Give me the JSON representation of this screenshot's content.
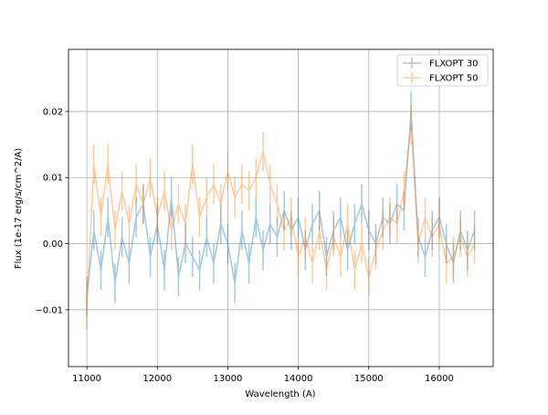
{
  "chart_data": {
    "type": "line",
    "title": "",
    "xlabel": "Wavelength (A)",
    "ylabel": "Flux (1e-17 erg/s/cm^2/A)",
    "xlim": [
      10740,
      16765
    ],
    "ylim": [
      -0.0186,
      0.0294
    ],
    "grid": true,
    "legend_position": "top-right",
    "x_ticks": [
      11000,
      12000,
      13000,
      14000,
      15000,
      16000
    ],
    "x_tick_labels": [
      "11000",
      "12000",
      "13000",
      "14000",
      "15000",
      "16000"
    ],
    "y_ticks": [
      -0.01,
      0.0,
      0.01,
      0.02
    ],
    "y_tick_labels": [
      "−0.01",
      "0.00",
      "0.01",
      "0.02"
    ],
    "x_start": 11000,
    "x_step": 100,
    "error": 0.003,
    "series": [
      {
        "name": "FLXOPT 30",
        "color": "#1f77b4",
        "values": [
          -0.008,
          0.002,
          -0.004,
          0.004,
          -0.006,
          0.001,
          -0.003,
          0.004,
          0.006,
          -0.002,
          0.003,
          -0.004,
          0.007,
          -0.005,
          0.0,
          -0.002,
          -0.004,
          0.001,
          -0.003,
          0.003,
          0.0,
          -0.006,
          0.002,
          -0.003,
          0.004,
          -0.001,
          0.003,
          0.001,
          0.005,
          0.002,
          0.004,
          -0.001,
          0.003,
          0.005,
          -0.002,
          0.002,
          0.004,
          -0.001,
          0.003,
          0.006,
          0.002,
          0.0,
          0.004,
          0.003,
          0.006,
          0.005,
          0.02,
          0.001,
          -0.002,
          0.002,
          0.004,
          0.0,
          -0.003,
          0.002,
          -0.001,
          0.002
        ]
      },
      {
        "name": "FLXOPT 50",
        "color": "#ff7f0e",
        "values": [
          -0.01,
          0.012,
          0.004,
          0.012,
          0.002,
          0.008,
          0.003,
          0.009,
          0.006,
          0.01,
          0.004,
          0.008,
          0.002,
          0.006,
          0.003,
          0.012,
          0.004,
          0.007,
          0.009,
          0.006,
          0.011,
          0.007,
          0.009,
          0.008,
          0.01,
          0.014,
          0.009,
          0.006,
          0.002,
          0.004,
          -0.002,
          0.001,
          -0.003,
          0.002,
          -0.004,
          0.001,
          -0.002,
          0.003,
          -0.004,
          0.0,
          -0.005,
          -0.001,
          0.002,
          0.004,
          0.003,
          0.008,
          0.018,
          0.0,
          0.004,
          0.001,
          0.003,
          -0.003,
          -0.002,
          0.001,
          -0.002,
          0.0
        ]
      }
    ]
  }
}
